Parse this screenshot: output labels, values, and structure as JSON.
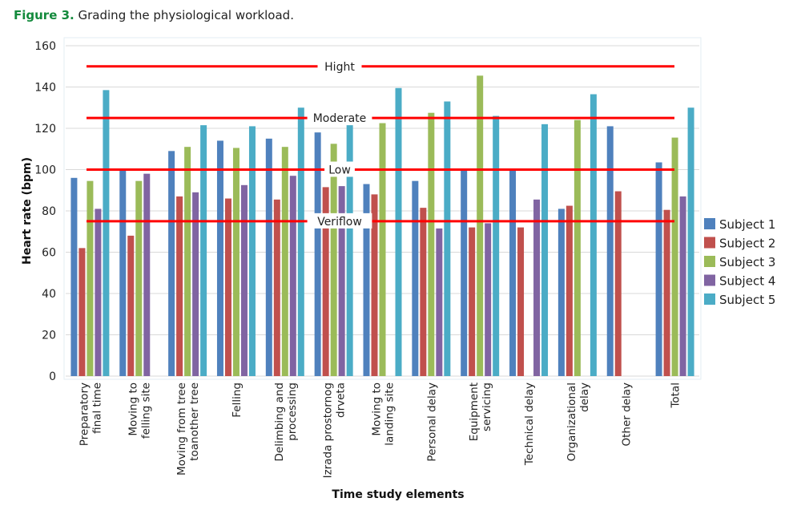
{
  "caption": {
    "figure_label": "Figure 3.",
    "text": "Grading the physiological workload."
  },
  "chart_data": {
    "type": "bar",
    "title": "Grading the physiological workload.",
    "xlabel": "Time study elements",
    "ylabel": "Heart rate (bpm)",
    "ylim": [
      0,
      160
    ],
    "yticks": [
      0,
      20,
      40,
      60,
      80,
      100,
      120,
      140,
      160
    ],
    "grid": true,
    "legend_position": "right",
    "categories": [
      [
        "Preparatory",
        "final time"
      ],
      [
        "Moving to",
        "felling site"
      ],
      [
        "Moving from tree",
        "toanother tree"
      ],
      [
        "Felling"
      ],
      [
        "Delimbing and",
        "processing"
      ],
      [
        "Izrada prostornog",
        "drveta"
      ],
      [
        "Moving to",
        "landing site"
      ],
      [
        "Personal delay"
      ],
      [
        "Equipment",
        "servicing"
      ],
      [
        "Technical delay"
      ],
      [
        "Organizational",
        "delay"
      ],
      [
        "Other delay"
      ],
      [
        "Total"
      ]
    ],
    "series": [
      {
        "name": "Subject 1",
        "color": "#4f81bd",
        "values": [
          96,
          100,
          109,
          114,
          115,
          118,
          93,
          94.5,
          100,
          100,
          81,
          121,
          103.5
        ]
      },
      {
        "name": "Subject 2",
        "color": "#c0504d",
        "values": [
          62,
          68,
          87,
          86,
          85.5,
          91.5,
          88,
          81.5,
          72,
          72,
          82.5,
          89.5,
          80.5
        ]
      },
      {
        "name": "Subject 3",
        "color": "#9bbb59",
        "values": [
          94.5,
          94.5,
          111,
          110.5,
          111,
          112.5,
          122.5,
          127.5,
          145.5,
          null,
          124,
          null,
          115.5
        ]
      },
      {
        "name": "Subject 4",
        "color": "#8064a2",
        "values": [
          81,
          98,
          89,
          92.5,
          97,
          92,
          null,
          71.5,
          74,
          85.5,
          null,
          null,
          87
        ]
      },
      {
        "name": "Subject 5",
        "color": "#4bacc6",
        "values": [
          138.5,
          null,
          121.5,
          121,
          130,
          122.5,
          139.5,
          133,
          126,
          122,
          136.5,
          null,
          130
        ]
      }
    ],
    "reference_lines": [
      {
        "label": "Hight",
        "value": 150,
        "color": "#ff0000"
      },
      {
        "label": "Moderate",
        "value": 125,
        "color": "#ff0000"
      },
      {
        "label": "Low",
        "value": 100,
        "color": "#ff0000"
      },
      {
        "label": "Veriflow",
        "value": 75,
        "color": "#ff0000"
      }
    ]
  }
}
